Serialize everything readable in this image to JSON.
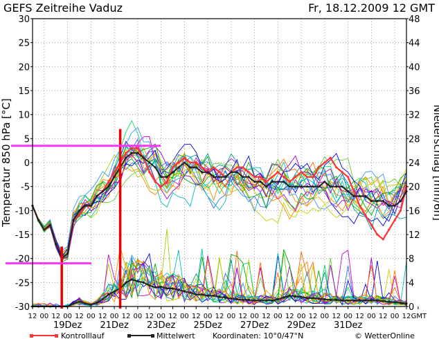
{
  "header": {
    "title": "GEFS Zeitreihe Vaduz",
    "run": "Fr, 18.12.2009 12 GMT"
  },
  "footer": {
    "control_label": "Kontrolllauf",
    "mean_label": "Mittelwert",
    "coords": "Koordinaten: 10°0/47°N",
    "brand": "© WetterOnline"
  },
  "colors": {
    "control": "#ff3333",
    "mean": "#222222",
    "marker_red": "#ee0000",
    "marker_magenta": "#ff33ff",
    "grid": "#888888",
    "members": [
      "#00aa00",
      "#0000dd",
      "#00bbbb",
      "#cccc00",
      "#9900cc",
      "#ff8800",
      "#00dd66",
      "#3366ff",
      "#aacc00",
      "#cc00cc",
      "#009999",
      "#66cc33",
      "#ff6600",
      "#3399ff"
    ]
  },
  "chart_data": {
    "type": "line",
    "title": "GEFS Zeitreihe Vaduz",
    "ylabel_left": "Temperatur 850 hPa [°C]",
    "ylabel_right": "Niederschlag [mm/6h]",
    "ylim_left": [
      -30,
      30
    ],
    "ylim_right": [
      0,
      48
    ],
    "yticks_left": [
      30,
      25,
      20,
      15,
      10,
      5,
      0,
      -5,
      -10,
      -15,
      -20,
      -25,
      -30
    ],
    "yticks_right": [
      48,
      44,
      40,
      36,
      32,
      28,
      24,
      20,
      16,
      12,
      8,
      4,
      0
    ],
    "x_hours": [
      0,
      6,
      12,
      18,
      24,
      30,
      36,
      42,
      48,
      54,
      60,
      66,
      72,
      78,
      84,
      90,
      96,
      102,
      108,
      114,
      120,
      126,
      132,
      138,
      144,
      150,
      156,
      162,
      168,
      174,
      180,
      186,
      192,
      198,
      204,
      210,
      216,
      222,
      228,
      234,
      240,
      246,
      252,
      258,
      264,
      270,
      276,
      282,
      288,
      294,
      300,
      306,
      312,
      318,
      324,
      330,
      336,
      342,
      348,
      354,
      360,
      366,
      372,
      378,
      384
    ],
    "xticks_hour": [
      "12",
      "00",
      "12",
      "00",
      "12",
      "00",
      "12",
      "00",
      "12",
      "00",
      "12",
      "00",
      "12",
      "00",
      "12",
      "00",
      "12",
      "00",
      "12",
      "00",
      "12",
      "00",
      "12",
      "00",
      "12",
      "00",
      "12",
      "00",
      "12",
      "00",
      "12",
      "00",
      "12",
      "GMT"
    ],
    "xticks_date": [
      "19Dez",
      "21Dez",
      "23Dez",
      "25Dez",
      "27Dez",
      "29Dez",
      "31Dez"
    ],
    "grid": true,
    "series": [
      {
        "name": "Mittelwert",
        "axis": "temperature",
        "values": [
          -9,
          -12,
          -14,
          -13,
          -17,
          -20,
          -19,
          -12,
          -10,
          -9,
          -9,
          -7,
          -6,
          -5,
          -3,
          -1,
          1,
          2,
          2,
          1,
          0,
          -1,
          -3,
          -3,
          -2,
          -1,
          0,
          -1,
          -1,
          -2,
          -2,
          -3,
          -3,
          -3,
          -2,
          -2,
          -3,
          -3,
          -4,
          -4,
          -5,
          -4,
          -4,
          -4,
          -5,
          -5,
          -5,
          -5,
          -5,
          -5,
          -4,
          -5,
          -5,
          -5,
          -6,
          -7,
          -7,
          -7,
          -8,
          -8,
          -8,
          -9,
          -9,
          -8,
          -6
        ]
      },
      {
        "name": "Kontrolllauf",
        "axis": "temperature",
        "values": [
          -9,
          -12,
          -14,
          -13,
          -17,
          -20,
          -19,
          -12,
          -11,
          -9,
          -9,
          -7,
          -6,
          -4,
          -2,
          0,
          2,
          3,
          3,
          1,
          -2,
          -4,
          -5,
          -4,
          -1,
          0,
          1,
          0,
          0,
          -1,
          -2,
          -1,
          -2,
          -3,
          -2,
          -1,
          -1,
          -2,
          -3,
          -3,
          -4,
          -3,
          -2,
          -3,
          -4,
          -3,
          -2,
          -3,
          -3,
          -1,
          0,
          1,
          -1,
          -2,
          -3,
          -6,
          -9,
          -11,
          -13,
          -15,
          -16,
          -14,
          -12,
          -10,
          -5
        ]
      },
      {
        "name": "Mittelwert",
        "axis": "precipitation",
        "values": [
          0,
          0,
          0,
          0,
          0,
          0,
          0,
          0.5,
          0.8,
          0.5,
          0.3,
          0.6,
          1.2,
          2,
          2.5,
          3,
          4,
          4.5,
          4.2,
          4,
          3.5,
          3.2,
          3.3,
          3,
          3,
          2.8,
          2.5,
          2.3,
          2,
          2,
          1.8,
          1.8,
          1.6,
          1.5,
          1.3,
          1.2,
          1.1,
          1.1,
          1,
          1,
          1,
          1,
          1.2,
          1.5,
          1.8,
          1.7,
          1.6,
          1.4,
          1.4,
          1.3,
          1.2,
          1.1,
          1.1,
          1,
          1,
          1,
          1,
          1,
          1,
          1,
          0.9,
          0.8,
          0.7,
          0.6,
          0.5
        ]
      }
    ],
    "markers": {
      "vertical_red_hours": [
        30,
        90
      ],
      "horizontal_magenta_temps": [
        -21,
        3.5
      ]
    }
  }
}
